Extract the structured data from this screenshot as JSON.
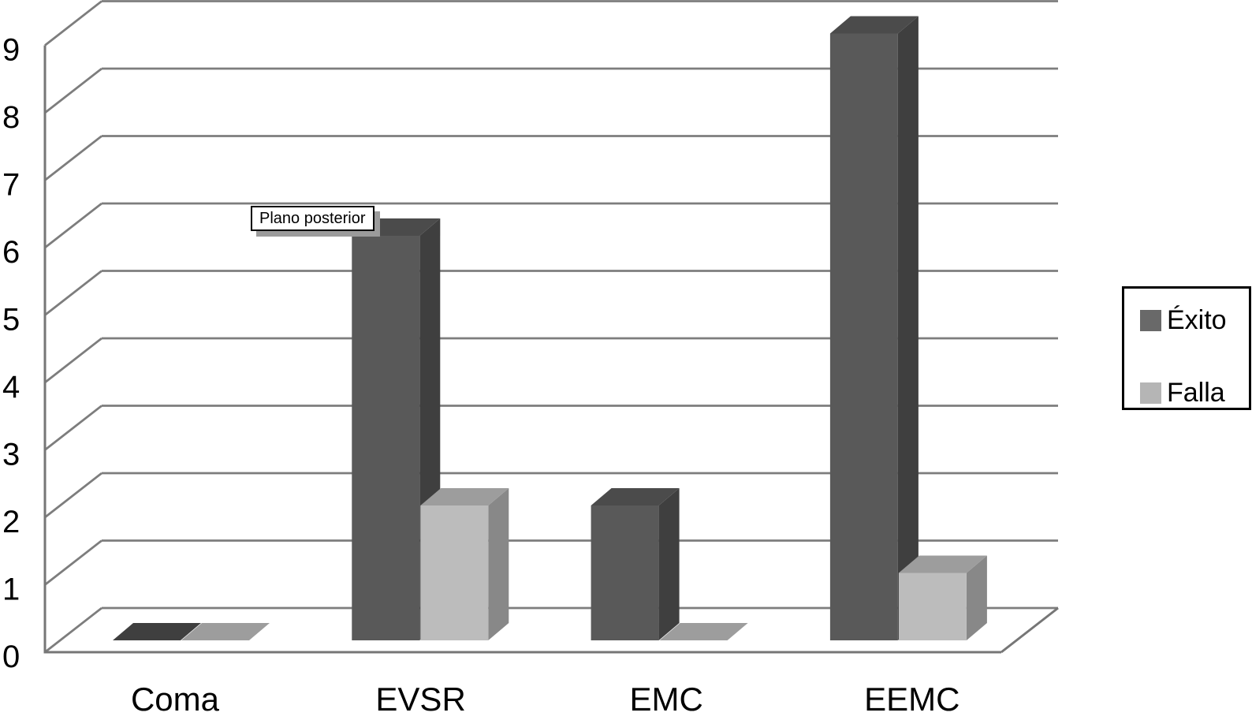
{
  "chart_data": {
    "type": "bar",
    "style": "3d-column",
    "title": "",
    "xlabel": "",
    "ylabel": "",
    "categories": [
      "Coma",
      "EVSR",
      "EMC",
      "EEMC"
    ],
    "series": [
      {
        "name": "Éxito",
        "values": [
          0,
          6,
          2,
          9
        ],
        "color_front": "#595959",
        "color_top": "#4b4b4b",
        "color_side": "#3f3f3f",
        "color_flat": "#3f3f3f",
        "legend_swatch": "#696969"
      },
      {
        "name": "Falla",
        "values": [
          0,
          2,
          0,
          1
        ],
        "color_front": "#bcbcbc",
        "color_top": "#9d9d9d",
        "color_side": "#888888",
        "color_flat": "#9d9d9d",
        "legend_swatch": "#b5b5b5"
      }
    ],
    "y_ticks": [
      0,
      1,
      2,
      3,
      4,
      5,
      6,
      7,
      8,
      9
    ],
    "ylim": [
      0,
      9
    ],
    "grid": true,
    "legend": {
      "position": "right",
      "entries": [
        "Éxito",
        "Falla"
      ]
    },
    "annotation": {
      "text": "Plano posterior"
    },
    "colors": {
      "gridline": "#7d7d7d",
      "axis": "#767676",
      "label_text": "#000000",
      "tooltip_bg": "#ffffff",
      "tooltip_border": "#000000",
      "tooltip_shadow": "#9b9b9b",
      "background": "#ffffff"
    }
  }
}
